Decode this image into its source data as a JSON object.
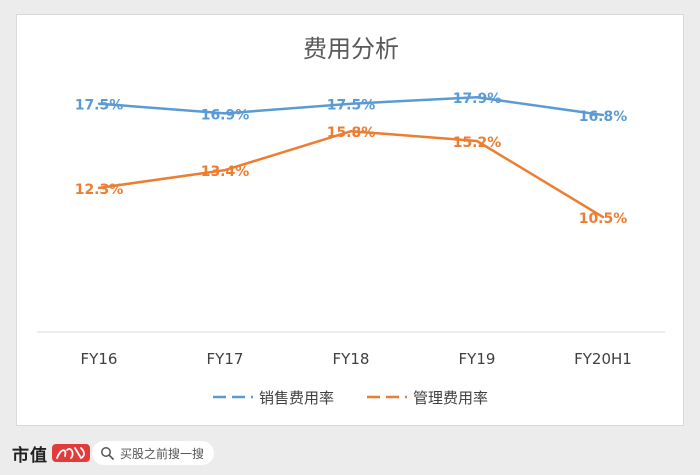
{
  "chart_data": {
    "type": "line",
    "title": "费用分析",
    "categories": [
      "FY16",
      "FY17",
      "FY18",
      "FY19",
      "FY20H1"
    ],
    "series": [
      {
        "name": "销售费用率",
        "values": [
          17.5,
          16.9,
          17.5,
          17.9,
          16.8
        ],
        "labels": [
          "17.5%",
          "16.9%",
          "17.5%",
          "17.9%",
          "16.8%"
        ],
        "color": "#5b9bd5"
      },
      {
        "name": "管理费用率",
        "values": [
          12.3,
          13.4,
          15.8,
          15.2,
          10.5
        ],
        "labels": [
          "12.3%",
          "13.4%",
          "15.8%",
          "15.2%",
          "10.5%"
        ],
        "color": "#ed7d31"
      }
    ],
    "legend_position": "bottom",
    "grid": false,
    "data_labels": true
  },
  "footer": {
    "brand": "市值",
    "search_placeholder": "买股之前搜一搜"
  }
}
